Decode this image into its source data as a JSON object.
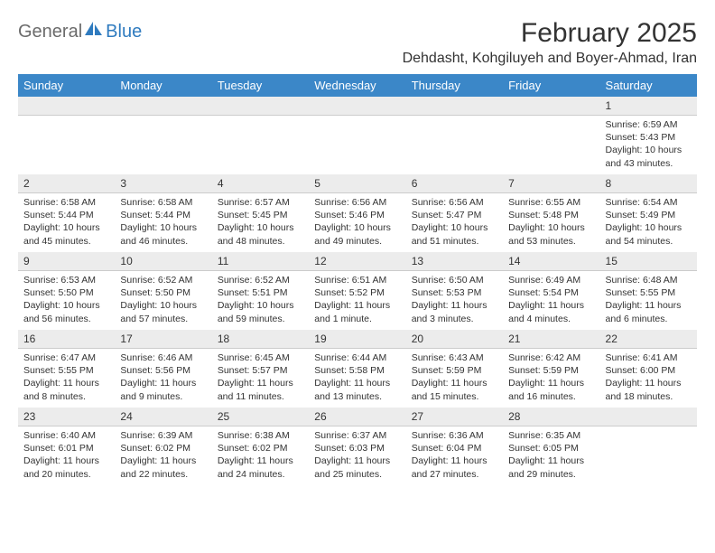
{
  "logo": {
    "general": "General",
    "blue": "Blue"
  },
  "title": "February 2025",
  "location": "Dehdasht, Kohgiluyeh and Boyer-Ahmad, Iran",
  "colors": {
    "header_bg": "#3b87c8",
    "header_text": "#ffffff",
    "daynum_bg": "#ececec",
    "text": "#333333",
    "logo_gray": "#6b6b6b",
    "logo_blue": "#2f7bbf"
  },
  "weekdays": [
    "Sunday",
    "Monday",
    "Tuesday",
    "Wednesday",
    "Thursday",
    "Friday",
    "Saturday"
  ],
  "weeks": [
    [
      null,
      null,
      null,
      null,
      null,
      null,
      {
        "n": "1",
        "sr": "Sunrise: 6:59 AM",
        "ss": "Sunset: 5:43 PM",
        "dl": "Daylight: 10 hours and 43 minutes."
      }
    ],
    [
      {
        "n": "2",
        "sr": "Sunrise: 6:58 AM",
        "ss": "Sunset: 5:44 PM",
        "dl": "Daylight: 10 hours and 45 minutes."
      },
      {
        "n": "3",
        "sr": "Sunrise: 6:58 AM",
        "ss": "Sunset: 5:44 PM",
        "dl": "Daylight: 10 hours and 46 minutes."
      },
      {
        "n": "4",
        "sr": "Sunrise: 6:57 AM",
        "ss": "Sunset: 5:45 PM",
        "dl": "Daylight: 10 hours and 48 minutes."
      },
      {
        "n": "5",
        "sr": "Sunrise: 6:56 AM",
        "ss": "Sunset: 5:46 PM",
        "dl": "Daylight: 10 hours and 49 minutes."
      },
      {
        "n": "6",
        "sr": "Sunrise: 6:56 AM",
        "ss": "Sunset: 5:47 PM",
        "dl": "Daylight: 10 hours and 51 minutes."
      },
      {
        "n": "7",
        "sr": "Sunrise: 6:55 AM",
        "ss": "Sunset: 5:48 PM",
        "dl": "Daylight: 10 hours and 53 minutes."
      },
      {
        "n": "8",
        "sr": "Sunrise: 6:54 AM",
        "ss": "Sunset: 5:49 PM",
        "dl": "Daylight: 10 hours and 54 minutes."
      }
    ],
    [
      {
        "n": "9",
        "sr": "Sunrise: 6:53 AM",
        "ss": "Sunset: 5:50 PM",
        "dl": "Daylight: 10 hours and 56 minutes."
      },
      {
        "n": "10",
        "sr": "Sunrise: 6:52 AM",
        "ss": "Sunset: 5:50 PM",
        "dl": "Daylight: 10 hours and 57 minutes."
      },
      {
        "n": "11",
        "sr": "Sunrise: 6:52 AM",
        "ss": "Sunset: 5:51 PM",
        "dl": "Daylight: 10 hours and 59 minutes."
      },
      {
        "n": "12",
        "sr": "Sunrise: 6:51 AM",
        "ss": "Sunset: 5:52 PM",
        "dl": "Daylight: 11 hours and 1 minute."
      },
      {
        "n": "13",
        "sr": "Sunrise: 6:50 AM",
        "ss": "Sunset: 5:53 PM",
        "dl": "Daylight: 11 hours and 3 minutes."
      },
      {
        "n": "14",
        "sr": "Sunrise: 6:49 AM",
        "ss": "Sunset: 5:54 PM",
        "dl": "Daylight: 11 hours and 4 minutes."
      },
      {
        "n": "15",
        "sr": "Sunrise: 6:48 AM",
        "ss": "Sunset: 5:55 PM",
        "dl": "Daylight: 11 hours and 6 minutes."
      }
    ],
    [
      {
        "n": "16",
        "sr": "Sunrise: 6:47 AM",
        "ss": "Sunset: 5:55 PM",
        "dl": "Daylight: 11 hours and 8 minutes."
      },
      {
        "n": "17",
        "sr": "Sunrise: 6:46 AM",
        "ss": "Sunset: 5:56 PM",
        "dl": "Daylight: 11 hours and 9 minutes."
      },
      {
        "n": "18",
        "sr": "Sunrise: 6:45 AM",
        "ss": "Sunset: 5:57 PM",
        "dl": "Daylight: 11 hours and 11 minutes."
      },
      {
        "n": "19",
        "sr": "Sunrise: 6:44 AM",
        "ss": "Sunset: 5:58 PM",
        "dl": "Daylight: 11 hours and 13 minutes."
      },
      {
        "n": "20",
        "sr": "Sunrise: 6:43 AM",
        "ss": "Sunset: 5:59 PM",
        "dl": "Daylight: 11 hours and 15 minutes."
      },
      {
        "n": "21",
        "sr": "Sunrise: 6:42 AM",
        "ss": "Sunset: 5:59 PM",
        "dl": "Daylight: 11 hours and 16 minutes."
      },
      {
        "n": "22",
        "sr": "Sunrise: 6:41 AM",
        "ss": "Sunset: 6:00 PM",
        "dl": "Daylight: 11 hours and 18 minutes."
      }
    ],
    [
      {
        "n": "23",
        "sr": "Sunrise: 6:40 AM",
        "ss": "Sunset: 6:01 PM",
        "dl": "Daylight: 11 hours and 20 minutes."
      },
      {
        "n": "24",
        "sr": "Sunrise: 6:39 AM",
        "ss": "Sunset: 6:02 PM",
        "dl": "Daylight: 11 hours and 22 minutes."
      },
      {
        "n": "25",
        "sr": "Sunrise: 6:38 AM",
        "ss": "Sunset: 6:02 PM",
        "dl": "Daylight: 11 hours and 24 minutes."
      },
      {
        "n": "26",
        "sr": "Sunrise: 6:37 AM",
        "ss": "Sunset: 6:03 PM",
        "dl": "Daylight: 11 hours and 25 minutes."
      },
      {
        "n": "27",
        "sr": "Sunrise: 6:36 AM",
        "ss": "Sunset: 6:04 PM",
        "dl": "Daylight: 11 hours and 27 minutes."
      },
      {
        "n": "28",
        "sr": "Sunrise: 6:35 AM",
        "ss": "Sunset: 6:05 PM",
        "dl": "Daylight: 11 hours and 29 minutes."
      },
      null
    ]
  ]
}
